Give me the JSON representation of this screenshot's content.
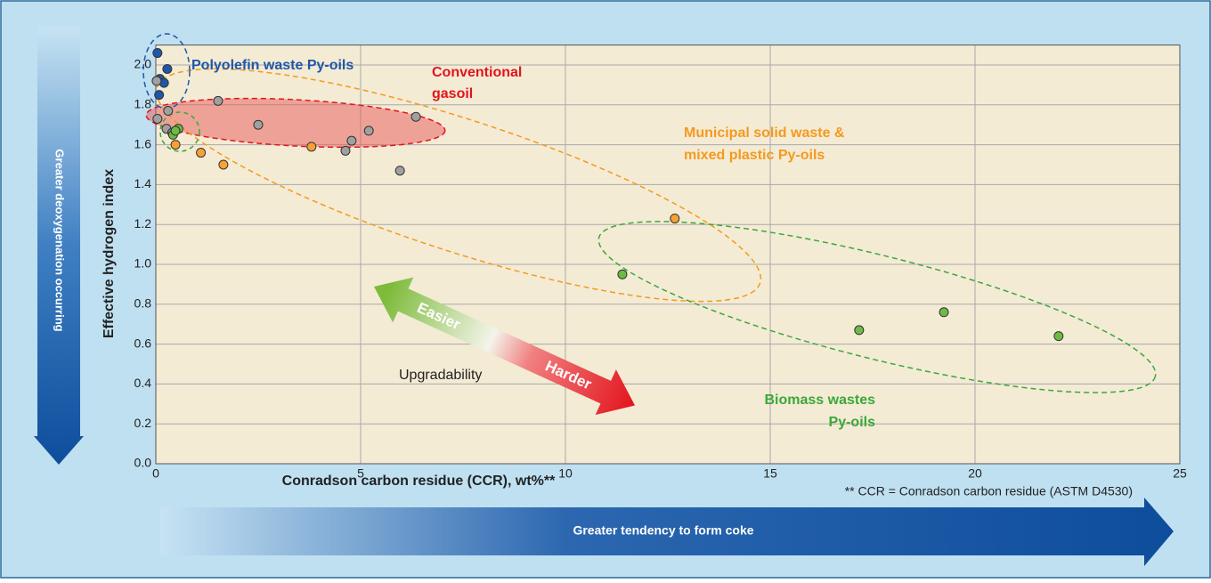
{
  "chart_data": {
    "type": "scatter",
    "xlabel": "Conradson carbon residue (CCR), wt%**",
    "ylabel": "Effective hydrogen index",
    "xlim": [
      0,
      25
    ],
    "ylim": [
      0,
      2.1
    ],
    "xticks": [
      0,
      5,
      10,
      15,
      20,
      25
    ],
    "yticks": [
      {
        "value": 0,
        "label": "0.0"
      },
      0.2,
      0.4,
      0.6,
      0.8,
      {
        "value": 1,
        "label": "1.0"
      },
      1.2,
      1.4,
      1.6,
      1.8,
      {
        "value": 2,
        "label": "2.0"
      }
    ],
    "grid": true,
    "series": [
      {
        "color": "#1f57a8",
        "x": [
          0.04,
          0.28,
          0.1,
          0.2,
          0.08
        ],
        "values": [
          2.06,
          1.98,
          1.93,
          1.91,
          1.85
        ]
      },
      {
        "color": "#a0a0a0",
        "x": [
          0.02,
          0.04,
          0.3,
          1.52,
          2.5,
          0.26,
          0.4,
          4.78,
          5.2,
          4.63,
          6.35,
          5.96
        ],
        "values": [
          1.92,
          1.73,
          1.77,
          1.82,
          1.7,
          1.68,
          1.66,
          1.62,
          1.67,
          1.57,
          1.74,
          1.47
        ]
      },
      {
        "color": "#f7a233",
        "x": [
          0.48,
          1.1,
          1.65,
          3.8,
          12.67
        ],
        "values": [
          1.6,
          1.56,
          1.5,
          1.59,
          1.23
        ]
      },
      {
        "color": "#6dbb45",
        "x": [
          0.42,
          0.55,
          0.48,
          11.39,
          17.17,
          19.24,
          22.04
        ],
        "values": [
          1.65,
          1.68,
          1.67,
          0.95,
          0.67,
          0.76,
          0.64
        ]
      }
    ],
    "annotations": {
      "polyolefin": [
        "Polyolefin waste Py-oils"
      ],
      "gasoil": [
        "Conventional",
        "gasoil"
      ],
      "msw": [
        "Municipal solid waste &",
        "mixed plastic Py-oils"
      ],
      "biomass": [
        "Biomass wastes",
        "Py-oils"
      ],
      "easier": "Easier",
      "harder": "Harder",
      "upgradability": "Upgradability",
      "deoxygenation": "Greater deoxygenation occurring",
      "coke": "Greater tendency to form coke",
      "footnote": "** CCR = Conradson carbon residue (ASTM D4530)"
    }
  }
}
